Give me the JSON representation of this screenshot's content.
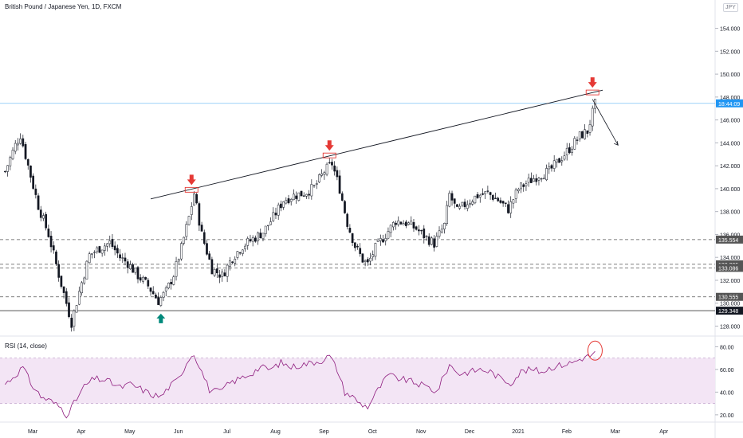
{
  "header": {
    "title": "British Pound / Japanese Yen, 1D, FXCM",
    "currency": "JPY"
  },
  "colors": {
    "up": "#26a69a",
    "down": "#ef5350",
    "candle": "#131722",
    "rsi_line": "#8e1c7e",
    "rsi_band": "#f3e5f5",
    "price_line": "#2196f3",
    "arrow_down": "#e53935",
    "arrow_up": "#00897b"
  },
  "chart_data": [
    {
      "type": "candlestick",
      "symbol": "GBPJPY",
      "timeframe": "1D",
      "ylim": [
        127.2,
        155.5
      ],
      "y_ticks": [
        "154.000",
        "152.000",
        "150.000",
        "148.000",
        "146.000",
        "144.000",
        "142.000",
        "140.000",
        "138.000",
        "136.000",
        "134.000",
        "132.000",
        "130.000",
        "128.000"
      ],
      "x_ticks": [
        "Mar",
        "Apr",
        "May",
        "Jun",
        "Jul",
        "Aug",
        "Sep",
        "Oct",
        "Nov",
        "Dec",
        "2021",
        "Feb",
        "Mar",
        "Apr",
        "May"
      ],
      "close_path": [
        {
          "t": 0,
          "v": 141.5
        },
        {
          "t": 4,
          "v": 143.8
        },
        {
          "t": 6,
          "v": 144.7
        },
        {
          "t": 9,
          "v": 142.0
        },
        {
          "t": 13,
          "v": 138.5
        },
        {
          "t": 17,
          "v": 136.0
        },
        {
          "t": 21,
          "v": 132.5
        },
        {
          "t": 24,
          "v": 130.0
        },
        {
          "t": 26,
          "v": 128.3
        },
        {
          "t": 29,
          "v": 131.0
        },
        {
          "t": 33,
          "v": 134.2
        },
        {
          "t": 37,
          "v": 134.8
        },
        {
          "t": 41,
          "v": 135.3
        },
        {
          "t": 45,
          "v": 134.0
        },
        {
          "t": 48,
          "v": 133.5
        },
        {
          "t": 52,
          "v": 132.4
        },
        {
          "t": 56,
          "v": 131.5
        },
        {
          "t": 60,
          "v": 130.2
        },
        {
          "t": 63,
          "v": 131.0
        },
        {
          "t": 66,
          "v": 132.5
        },
        {
          "t": 69,
          "v": 134.8
        },
        {
          "t": 72,
          "v": 137.5
        },
        {
          "t": 74,
          "v": 139.6
        },
        {
          "t": 77,
          "v": 136.0
        },
        {
          "t": 81,
          "v": 133.0
        },
        {
          "t": 85,
          "v": 132.4
        },
        {
          "t": 89,
          "v": 134.0
        },
        {
          "t": 93,
          "v": 135.0
        },
        {
          "t": 97,
          "v": 135.6
        },
        {
          "t": 101,
          "v": 136.2
        },
        {
          "t": 105,
          "v": 137.5
        },
        {
          "t": 109,
          "v": 139.0
        },
        {
          "t": 113,
          "v": 139.4
        },
        {
          "t": 117,
          "v": 139.6
        },
        {
          "t": 121,
          "v": 140.1
        },
        {
          "t": 125,
          "v": 141.5
        },
        {
          "t": 128,
          "v": 142.2
        },
        {
          "t": 131,
          "v": 140.0
        },
        {
          "t": 134,
          "v": 137.0
        },
        {
          "t": 137,
          "v": 135.0
        },
        {
          "t": 140,
          "v": 133.8
        },
        {
          "t": 142,
          "v": 133.4
        },
        {
          "t": 145,
          "v": 134.8
        },
        {
          "t": 149,
          "v": 136.0
        },
        {
          "t": 153,
          "v": 137.2
        },
        {
          "t": 157,
          "v": 137.0
        },
        {
          "t": 161,
          "v": 136.5
        },
        {
          "t": 165,
          "v": 135.7
        },
        {
          "t": 168,
          "v": 135.2
        },
        {
          "t": 172,
          "v": 136.8
        },
        {
          "t": 174,
          "v": 139.5
        },
        {
          "t": 177,
          "v": 138.0
        },
        {
          "t": 181,
          "v": 138.8
        },
        {
          "t": 185,
          "v": 139.4
        },
        {
          "t": 189,
          "v": 139.6
        },
        {
          "t": 193,
          "v": 139.0
        },
        {
          "t": 197,
          "v": 138.2
        },
        {
          "t": 201,
          "v": 140.0
        },
        {
          "t": 205,
          "v": 140.6
        },
        {
          "t": 209,
          "v": 141.2
        },
        {
          "t": 213,
          "v": 141.5
        },
        {
          "t": 217,
          "v": 142.5
        },
        {
          "t": 221,
          "v": 143.5
        },
        {
          "t": 225,
          "v": 144.6
        },
        {
          "t": 228,
          "v": 145.0
        },
        {
          "t": 231,
          "v": 147.4
        }
      ],
      "horizontal_levels": [
        {
          "value": 135.554,
          "label": "135.554",
          "style": "dashed"
        },
        {
          "value": 133.395,
          "label": "133.395",
          "style": "dashed"
        },
        {
          "value": 133.086,
          "label": "133.086",
          "style": "dashed"
        },
        {
          "value": 130.555,
          "label": "130.555",
          "style": "dashed"
        },
        {
          "value": 129.348,
          "label": "129.348",
          "style": "solid"
        }
      ],
      "current_price": {
        "value": 147.45,
        "label": "18:44:09"
      },
      "trendline": {
        "start": {
          "t": 57,
          "v": 139.1
        },
        "end": {
          "t": 234,
          "v": 148.6
        }
      },
      "projection": {
        "start": {
          "t": 230,
          "v": 147.8
        },
        "end": {
          "t": 240,
          "v": 143.8
        }
      },
      "markers": [
        {
          "kind": "down-arrow",
          "t": 73,
          "v": 139.9
        },
        {
          "kind": "down-arrow",
          "t": 127,
          "v": 142.9
        },
        {
          "kind": "down-arrow",
          "t": 230,
          "v": 148.4
        },
        {
          "kind": "up-arrow",
          "t": 61,
          "v": 129.5
        }
      ]
    },
    {
      "type": "line",
      "name": "RSI (14, close)",
      "ylim": [
        15,
        88
      ],
      "y_ticks": [
        "80.00",
        "60.00",
        "40.00",
        "20.00"
      ],
      "band": [
        30,
        70
      ],
      "rsi_path": [
        {
          "t": 0,
          "v": 47
        },
        {
          "t": 4,
          "v": 55
        },
        {
          "t": 7,
          "v": 62
        },
        {
          "t": 10,
          "v": 48
        },
        {
          "t": 14,
          "v": 36
        },
        {
          "t": 18,
          "v": 32
        },
        {
          "t": 22,
          "v": 26
        },
        {
          "t": 24,
          "v": 20
        },
        {
          "t": 27,
          "v": 30
        },
        {
          "t": 31,
          "v": 45
        },
        {
          "t": 35,
          "v": 52
        },
        {
          "t": 40,
          "v": 50
        },
        {
          "t": 45,
          "v": 44
        },
        {
          "t": 49,
          "v": 47
        },
        {
          "t": 53,
          "v": 43
        },
        {
          "t": 57,
          "v": 38
        },
        {
          "t": 61,
          "v": 36
        },
        {
          "t": 64,
          "v": 44
        },
        {
          "t": 68,
          "v": 52
        },
        {
          "t": 72,
          "v": 70
        },
        {
          "t": 74,
          "v": 74
        },
        {
          "t": 77,
          "v": 58
        },
        {
          "t": 80,
          "v": 42
        },
        {
          "t": 84,
          "v": 40
        },
        {
          "t": 88,
          "v": 48
        },
        {
          "t": 92,
          "v": 52
        },
        {
          "t": 96,
          "v": 56
        },
        {
          "t": 100,
          "v": 62
        },
        {
          "t": 104,
          "v": 60
        },
        {
          "t": 108,
          "v": 66
        },
        {
          "t": 112,
          "v": 62
        },
        {
          "t": 116,
          "v": 64
        },
        {
          "t": 120,
          "v": 66
        },
        {
          "t": 124,
          "v": 68
        },
        {
          "t": 127,
          "v": 72
        },
        {
          "t": 130,
          "v": 60
        },
        {
          "t": 133,
          "v": 40
        },
        {
          "t": 136,
          "v": 36
        },
        {
          "t": 139,
          "v": 30
        },
        {
          "t": 142,
          "v": 27
        },
        {
          "t": 146,
          "v": 42
        },
        {
          "t": 150,
          "v": 55
        },
        {
          "t": 154,
          "v": 52
        },
        {
          "t": 158,
          "v": 50
        },
        {
          "t": 162,
          "v": 47
        },
        {
          "t": 166,
          "v": 44
        },
        {
          "t": 169,
          "v": 40
        },
        {
          "t": 172,
          "v": 55
        },
        {
          "t": 174,
          "v": 64
        },
        {
          "t": 178,
          "v": 56
        },
        {
          "t": 182,
          "v": 58
        },
        {
          "t": 186,
          "v": 60
        },
        {
          "t": 190,
          "v": 58
        },
        {
          "t": 194,
          "v": 52
        },
        {
          "t": 198,
          "v": 48
        },
        {
          "t": 202,
          "v": 58
        },
        {
          "t": 206,
          "v": 60
        },
        {
          "t": 210,
          "v": 58
        },
        {
          "t": 214,
          "v": 62
        },
        {
          "t": 218,
          "v": 64
        },
        {
          "t": 222,
          "v": 66
        },
        {
          "t": 226,
          "v": 70
        },
        {
          "t": 229,
          "v": 72
        },
        {
          "t": 232,
          "v": 76
        }
      ],
      "marker": {
        "kind": "circle",
        "t": 231,
        "v": 78
      }
    }
  ]
}
